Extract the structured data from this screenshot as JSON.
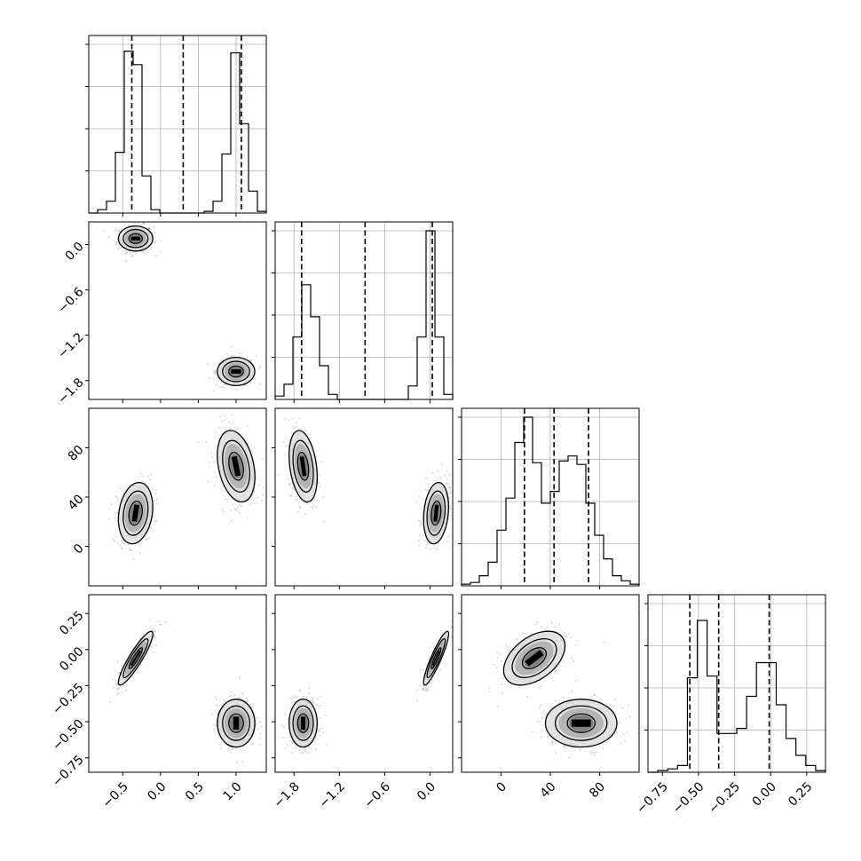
{
  "chart_data": {
    "type": "corner",
    "parameters": [
      {
        "range": [
          -0.95,
          1.4
        ],
        "ticks": [
          -0.5,
          0.0,
          0.5,
          1.0
        ],
        "tick_labels": [
          "−0.5",
          "0.0",
          "0.5",
          "1.0"
        ],
        "quantiles": [
          -0.38,
          0.3,
          1.07
        ],
        "hist_counts": [
          0,
          0.02,
          0.07,
          0.36,
          0.96,
          0.88,
          0.22,
          0.02,
          0,
          0,
          0,
          0,
          0,
          0.01,
          0.07,
          0.35,
          0.95,
          0.53,
          0.13,
          0.01
        ]
      },
      {
        "range": [
          -2.05,
          0.3
        ],
        "ticks": [
          -1.8,
          -1.2,
          -0.6,
          0.0
        ],
        "tick_labels": [
          "−1.8",
          "−1.2",
          "−0.6",
          "0.0"
        ],
        "quantiles": [
          -1.7,
          -0.86,
          0.03
        ],
        "hist_counts": [
          0.02,
          0.09,
          0.37,
          0.68,
          0.49,
          0.2,
          0.03,
          0,
          0,
          0,
          0,
          0,
          0,
          0,
          0,
          0.08,
          0.37,
          1.0,
          0.37,
          0.03
        ]
      },
      {
        "range": [
          -32,
          112
        ],
        "ticks": [
          0,
          40,
          80
        ],
        "tick_labels": [
          "0",
          "40",
          "80"
        ],
        "quantiles": [
          19,
          43,
          71
        ],
        "hist_counts": [
          0.01,
          0.02,
          0.06,
          0.14,
          0.33,
          0.52,
          0.85,
          1.0,
          0.73,
          0.49,
          0.56,
          0.74,
          0.77,
          0.72,
          0.49,
          0.3,
          0.16,
          0.06,
          0.03,
          0.01
        ]
      },
      {
        "range": [
          -0.85,
          0.38
        ],
        "ticks": [
          -0.75,
          -0.5,
          -0.25,
          0.0,
          0.25
        ],
        "tick_labels": [
          "−0.75",
          "−0.50",
          "−0.25",
          "0.00",
          "0.25"
        ],
        "quantiles": [
          -0.56,
          -0.36,
          -0.01
        ],
        "hist_counts": [
          0.0,
          0.01,
          0.02,
          0.04,
          0.56,
          0.9,
          0.57,
          0.23,
          0.23,
          0.26,
          0.45,
          0.65,
          0.65,
          0.4,
          0.2,
          0.1,
          0.04,
          0.01
        ]
      }
    ],
    "modes": [
      {
        "mean": [
          -0.33,
          0.08,
          27,
          -0.06
        ],
        "sd": [
          0.11,
          0.08,
          12,
          0.09
        ]
      },
      {
        "mean": [
          1.0,
          -1.68,
          65,
          -0.51
        ],
        "sd": [
          0.12,
          0.09,
          14,
          0.08
        ]
      }
    ],
    "pair_correlations": {
      "0-1": [
        0,
        0
      ],
      "0-2": [
        0.2,
        -0.3
      ],
      "1-2": [
        0.2,
        -0.3
      ],
      "0-3": [
        0.9,
        0
      ],
      "1-3": [
        0.9,
        0
      ],
      "2-3": [
        0.45,
        0
      ]
    },
    "contour_sigmas": [
      0.7,
      1.3,
      1.8
    ]
  }
}
